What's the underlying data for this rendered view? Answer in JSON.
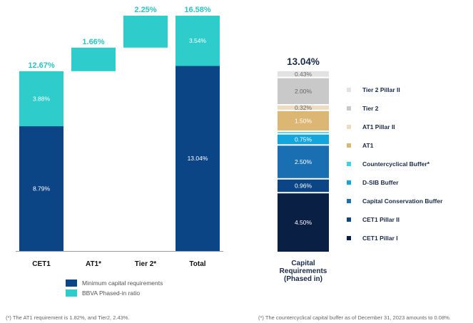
{
  "colors": {
    "navy": "#0b4585",
    "teal": "#2ecdcb",
    "teal_text": "#2ac4c4",
    "text_dark": "#1a2a4a"
  },
  "chart_data": [
    {
      "type": "bar",
      "subtype": "waterfall-stacked",
      "categories": [
        "CET1",
        "AT1*",
        "Tier 2*",
        "Total"
      ],
      "series": [
        {
          "name": "Minimum capital requirements",
          "values": [
            8.79,
            null,
            null,
            13.04
          ],
          "labels": [
            "8.79%",
            "",
            "",
            "13.04%"
          ]
        },
        {
          "name": "BBVA Phased-in ratio",
          "values": [
            3.88,
            1.66,
            2.25,
            3.54
          ],
          "labels": [
            "3.88%",
            "",
            "",
            "3.54%"
          ]
        }
      ],
      "floating_starts": [
        0,
        12.67,
        14.33,
        0
      ],
      "totals": [
        "12.67%",
        "1.66%",
        "2.25%",
        "16.58%"
      ],
      "ylim": [
        0,
        16.58
      ],
      "legend": [
        "Minimum capital requirements",
        "BBVA Phased-in ratio"
      ],
      "legend_position": "bottom-left"
    },
    {
      "type": "bar",
      "subtype": "stacked",
      "title": "13.04%",
      "category_label": [
        "Capital",
        "Requirements",
        "(Phased in)"
      ],
      "components": [
        {
          "name": "CET1 Pillar I",
          "value": 4.5,
          "label": "4.50%",
          "color": "#0a1f44"
        },
        {
          "name": "CET1 Pillar II",
          "value": 0.96,
          "label": "0.96%",
          "color": "#0b4585"
        },
        {
          "name": "Capital Conservation Buffer",
          "value": 2.5,
          "label": "2.50%",
          "color": "#1a6fb3"
        },
        {
          "name": "D-SIB Buffer",
          "value": 0.75,
          "label": "0.75%",
          "color": "#14a5dc"
        },
        {
          "name": "Countercyclical Buffer*",
          "value": 0.08,
          "label": "",
          "color": "#3fd0e6"
        },
        {
          "name": "AT1",
          "value": 1.5,
          "label": "1.50%",
          "color": "#dcb673"
        },
        {
          "name": "AT1 Pillar II",
          "value": 0.32,
          "label": "0.32%",
          "color": "#ecdcc0"
        },
        {
          "name": "Tier 2",
          "value": 2.0,
          "label": "2.00%",
          "color": "#c9c9c9"
        },
        {
          "name": "Tier 2 Pillar II",
          "value": 0.43,
          "label": "0.43%",
          "color": "#e2e2e2"
        }
      ]
    }
  ],
  "footnotes": {
    "left": "(*) The AT1 requirement is 1.82%, and Tier2, 2.43%.",
    "right": "(*) The countercyclical capital buffer as of December 31, 2023 amounts to 0.08%."
  }
}
